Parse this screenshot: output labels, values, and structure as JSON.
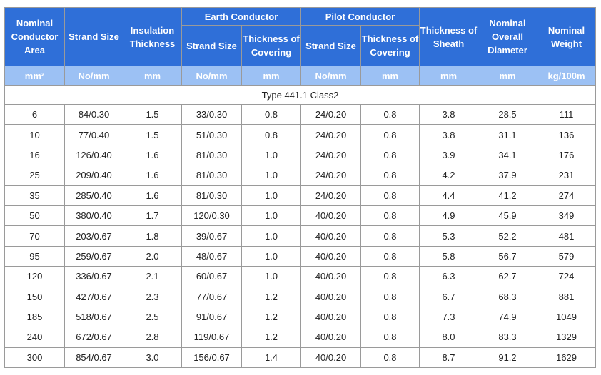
{
  "headers": {
    "nominal_area": "Nominal Conductor Area",
    "strand_size": "Strand Size",
    "insulation_thickness": "Insulation Thickness",
    "earth_conductor": "Earth Conductor",
    "pilot_conductor": "Pilot Conductor",
    "earth_strand_size": "Strand Size",
    "earth_covering": "Thickness of Covering",
    "pilot_strand_size": "Strand Size",
    "pilot_covering": "Thickness of Covering",
    "sheath_thickness": "Thickness of Sheath",
    "overall_diameter": "Nominal Overall Diameter",
    "nominal_weight": "Nominal Weight"
  },
  "units": [
    "mm²",
    "No/mm",
    "mm",
    "No/mm",
    "mm",
    "No/mm",
    "mm",
    "mm",
    "mm",
    "kg/100m"
  ],
  "type_label": "Type 441.1 Class2",
  "rows": [
    [
      "6",
      "84/0.30",
      "1.5",
      "33/0.30",
      "0.8",
      "24/0.20",
      "0.8",
      "3.8",
      "28.5",
      "111"
    ],
    [
      "10",
      "77/0.40",
      "1.5",
      "51/0.30",
      "0.8",
      "24/0.20",
      "0.8",
      "3.8",
      "31.1",
      "136"
    ],
    [
      "16",
      "126/0.40",
      "1.6",
      "81/0.30",
      "1.0",
      "24/0.20",
      "0.8",
      "3.9",
      "34.1",
      "176"
    ],
    [
      "25",
      "209/0.40",
      "1.6",
      "81/0.30",
      "1.0",
      "24/0.20",
      "0.8",
      "4.2",
      "37.9",
      "231"
    ],
    [
      "35",
      "285/0.40",
      "1.6",
      "81/0.30",
      "1.0",
      "24/0.20",
      "0.8",
      "4.4",
      "41.2",
      "274"
    ],
    [
      "50",
      "380/0.40",
      "1.7",
      "120/0.30",
      "1.0",
      "40/0.20",
      "0.8",
      "4.9",
      "45.9",
      "349"
    ],
    [
      "70",
      "203/0.67",
      "1.8",
      "39/0.67",
      "1.0",
      "40/0.20",
      "0.8",
      "5.3",
      "52.2",
      "481"
    ],
    [
      "95",
      "259/0.67",
      "2.0",
      "48/0.67",
      "1.0",
      "40/0.20",
      "0.8",
      "5.8",
      "56.7",
      "579"
    ],
    [
      "120",
      "336/0.67",
      "2.1",
      "60/0.67",
      "1.0",
      "40/0.20",
      "0.8",
      "6.3",
      "62.7",
      "724"
    ],
    [
      "150",
      "427/0.67",
      "2.3",
      "77/0.67",
      "1.2",
      "40/0.20",
      "0.8",
      "6.7",
      "68.3",
      "881"
    ],
    [
      "185",
      "518/0.67",
      "2.5",
      "91/0.67",
      "1.2",
      "40/0.20",
      "0.8",
      "7.3",
      "74.9",
      "1049"
    ],
    [
      "240",
      "672/0.67",
      "2.8",
      "119/0.67",
      "1.2",
      "40/0.20",
      "0.8",
      "8.0",
      "83.3",
      "1329"
    ],
    [
      "300",
      "854/0.67",
      "3.0",
      "156/0.67",
      "1.4",
      "40/0.20",
      "0.8",
      "8.7",
      "91.2",
      "1629"
    ]
  ],
  "colors": {
    "header_bg": "#2f6fd8",
    "unit_bg": "#9cc1f4",
    "header_text": "#ffffff",
    "grid": "#9a9a9a"
  }
}
